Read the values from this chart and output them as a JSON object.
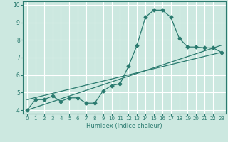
{
  "xlabel": "Humidex (Indice chaleur)",
  "ylabel": "",
  "xlim": [
    -0.5,
    23.5
  ],
  "ylim": [
    3.8,
    10.2
  ],
  "xticks": [
    0,
    1,
    2,
    3,
    4,
    5,
    6,
    7,
    8,
    9,
    10,
    11,
    12,
    13,
    14,
    15,
    16,
    17,
    18,
    19,
    20,
    21,
    22,
    23
  ],
  "yticks": [
    4,
    5,
    6,
    7,
    8,
    9,
    10
  ],
  "background_color": "#cce8e0",
  "grid_color": "#ffffff",
  "line_color": "#2a7a6f",
  "line1_x": [
    0,
    1,
    2,
    3,
    4,
    5,
    6,
    7,
    8,
    9,
    10,
    11,
    12,
    13,
    14,
    15,
    16,
    17,
    18,
    19,
    20,
    21,
    22,
    23
  ],
  "line1_y": [
    4.0,
    4.6,
    4.6,
    4.8,
    4.5,
    4.7,
    4.7,
    4.4,
    4.4,
    5.1,
    5.4,
    5.5,
    6.5,
    7.7,
    9.3,
    9.7,
    9.7,
    9.3,
    8.1,
    7.6,
    7.6,
    7.55,
    7.55,
    7.3
  ],
  "line2_x": [
    0,
    23
  ],
  "line2_y": [
    4.0,
    7.7
  ],
  "line3_x": [
    0,
    23
  ],
  "line3_y": [
    4.6,
    7.3
  ],
  "marker": "D",
  "markersize": 2.5,
  "xlabel_fontsize": 6.0,
  "tick_fontsize_x": 5.0,
  "tick_fontsize_y": 5.5
}
